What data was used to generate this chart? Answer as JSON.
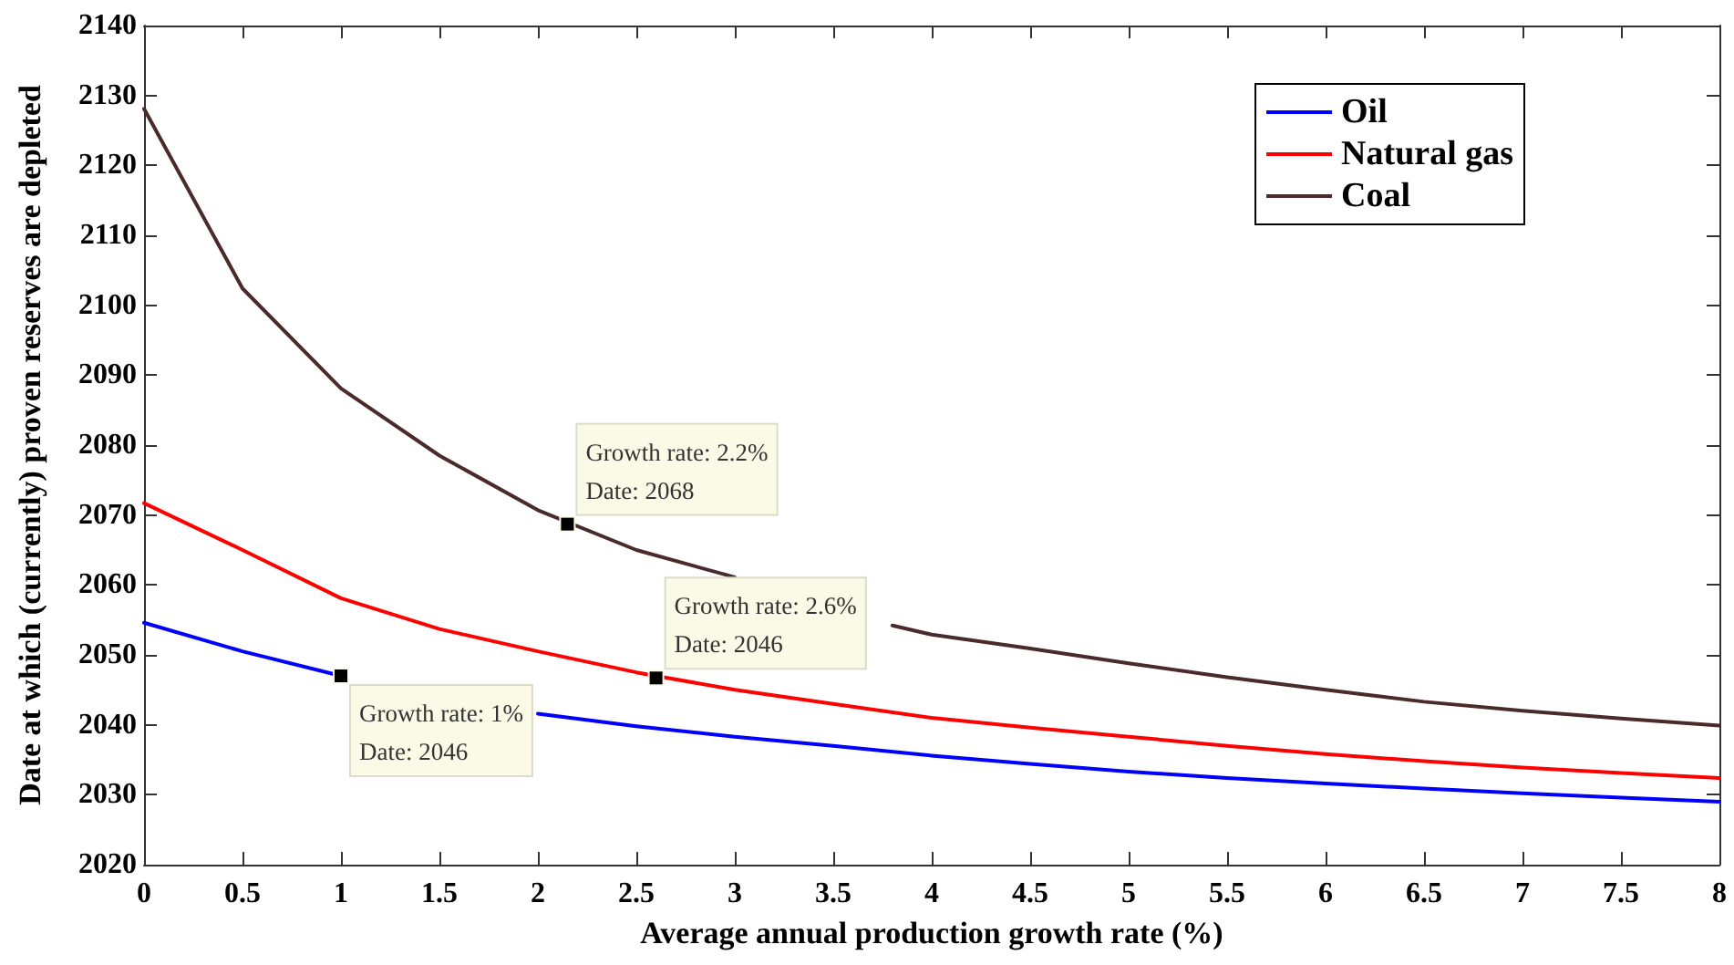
{
  "chart_data": {
    "type": "line",
    "xlabel": "Average annual production growth rate (%)",
    "ylabel": "Date at which (currently) proven reserves are depleted",
    "x": [
      0,
      0.5,
      1,
      1.5,
      2,
      2.5,
      3,
      3.5,
      4,
      4.5,
      5,
      5.5,
      6,
      6.5,
      7,
      7.5,
      8
    ],
    "series": [
      {
        "name": "Oil",
        "color": "#0000ff",
        "x": [
          0,
          0.5,
          1,
          1.5,
          2,
          2.5,
          3,
          3.5,
          4,
          4.5,
          5,
          5.5,
          6,
          6.5,
          7,
          7.5,
          8
        ],
        "values": [
          2054.6,
          2050.5,
          2047,
          null,
          2041.6,
          2039.8,
          2038.3,
          2037,
          2035.6,
          2034.4,
          2033.3,
          2032.4,
          2031.6,
          2030.9,
          2030.2,
          2029.6,
          2029
        ]
      },
      {
        "name": "Natural gas",
        "color": "#ff0000",
        "values": [
          2071.7,
          2065,
          2058.1,
          2053.7,
          2050.5,
          2047.5,
          2045,
          2043,
          2041,
          2039.6,
          2038.3,
          2037,
          2035.8,
          2034.8,
          2033.9,
          2033.1,
          2032.4
        ]
      },
      {
        "name": "Coal",
        "color": "#4a2a2a",
        "x": [
          0,
          0.5,
          1,
          1.5,
          2,
          2.5,
          3,
          3.5,
          3.8,
          4,
          4.5,
          5,
          5.5,
          6,
          6.5,
          7,
          7.5,
          8
        ],
        "values": [
          2128.1,
          2102.4,
          2088.1,
          2078.5,
          2070.7,
          2065,
          2061.1,
          null,
          2054.2,
          2052.9,
          2050.9,
          2048.8,
          2046.8,
          2045,
          2043.3,
          2042,
          2040.9,
          2039.9
        ]
      }
    ],
    "annotations": [
      {
        "text": "Growth rate: 1%\nDate: 2046",
        "x": 1,
        "y": 2047
      },
      {
        "text": "Growth rate: 2.2%\nDate: 2068",
        "x": 2.15,
        "y": 2068.7
      },
      {
        "text": "Growth rate: 2.6%\nDate: 2046",
        "x": 2.6,
        "y": 2046.7
      }
    ],
    "xlim": [
      0,
      8
    ],
    "xticks": [
      0,
      0.5,
      1,
      1.5,
      2,
      2.5,
      3,
      3.5,
      4,
      4.5,
      5,
      5.5,
      6,
      6.5,
      7,
      7.5,
      8
    ],
    "ylim": [
      2020,
      2140
    ],
    "yticks": [
      2020,
      2030,
      2040,
      2050,
      2060,
      2070,
      2080,
      2090,
      2100,
      2110,
      2120,
      2130,
      2140
    ],
    "legend": "top right",
    "grid": false,
    "marker": "none",
    "line_style": "solid"
  }
}
